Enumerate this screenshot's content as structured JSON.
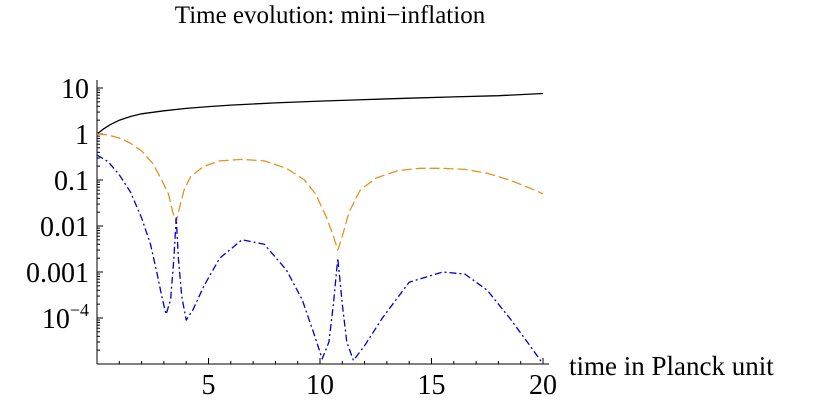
{
  "chart_data": {
    "type": "line",
    "title": "Time evolution: mini−inflation",
    "xlabel": "time in Planck unit",
    "ylabel": "",
    "xlim": [
      0,
      20
    ],
    "ylim": [
      1e-05,
      10
    ],
    "yscale": "log",
    "grid": false,
    "x_ticks": [
      {
        "value": 5,
        "label": "5"
      },
      {
        "value": 10,
        "label": "10"
      },
      {
        "value": 15,
        "label": "15"
      },
      {
        "value": 20,
        "label": "20"
      }
    ],
    "y_ticks": [
      {
        "value": 10,
        "label": "10"
      },
      {
        "value": 1,
        "label": "1"
      },
      {
        "value": 0.1,
        "label": "0.1"
      },
      {
        "value": 0.01,
        "label": "0.01"
      },
      {
        "value": 0.001,
        "label": "0.001"
      },
      {
        "value": 0.0001,
        "label_base": "10",
        "label_exp": "−4"
      }
    ],
    "series": [
      {
        "color": "#000000",
        "dash": "solid",
        "points": [
          [
            0,
            1.0
          ],
          [
            0.3,
            1.3
          ],
          [
            0.6,
            1.6
          ],
          [
            1,
            2.0
          ],
          [
            1.5,
            2.4
          ],
          [
            2,
            2.75
          ],
          [
            3,
            3.2
          ],
          [
            4,
            3.6
          ],
          [
            5,
            3.95
          ],
          [
            6,
            4.25
          ],
          [
            7,
            4.5
          ],
          [
            8,
            4.75
          ],
          [
            10,
            5.2
          ],
          [
            12,
            5.6
          ],
          [
            14,
            6.0
          ],
          [
            16,
            6.4
          ],
          [
            18,
            6.8
          ],
          [
            20,
            7.6
          ]
        ]
      },
      {
        "color": "#E8901F",
        "dash": "long",
        "points": [
          [
            0,
            1.0
          ],
          [
            0.5,
            0.95
          ],
          [
            1,
            0.82
          ],
          [
            1.5,
            0.63
          ],
          [
            2,
            0.43
          ],
          [
            2.5,
            0.23
          ],
          [
            2.9,
            0.1
          ],
          [
            3.2,
            0.05
          ],
          [
            3.4,
            0.02
          ],
          [
            3.55,
            0.012
          ],
          [
            3.7,
            0.025
          ],
          [
            3.9,
            0.06
          ],
          [
            4.2,
            0.12
          ],
          [
            4.8,
            0.2
          ],
          [
            5.5,
            0.26
          ],
          [
            6.5,
            0.28
          ],
          [
            7.5,
            0.26
          ],
          [
            8.5,
            0.18
          ],
          [
            9.3,
            0.1
          ],
          [
            9.8,
            0.05
          ],
          [
            10.3,
            0.015
          ],
          [
            10.6,
            0.006
          ],
          [
            10.8,
            0.003
          ],
          [
            11,
            0.006
          ],
          [
            11.3,
            0.02
          ],
          [
            11.8,
            0.06
          ],
          [
            12.5,
            0.11
          ],
          [
            13.5,
            0.16
          ],
          [
            14.5,
            0.18
          ],
          [
            15.5,
            0.18
          ],
          [
            16.5,
            0.17
          ],
          [
            17.5,
            0.14
          ],
          [
            18.5,
            0.1
          ],
          [
            19.3,
            0.07
          ],
          [
            20,
            0.05
          ]
        ]
      },
      {
        "color": "#0000CC",
        "dash": "dashdot",
        "points": [
          [
            0,
            0.35
          ],
          [
            0.5,
            0.25
          ],
          [
            1,
            0.13
          ],
          [
            1.5,
            0.055
          ],
          [
            2,
            0.015
          ],
          [
            2.4,
            0.004
          ],
          [
            2.7,
            0.0009
          ],
          [
            2.9,
            0.0003
          ],
          [
            3.1,
            0.00012
          ],
          [
            3.3,
            0.00025
          ],
          [
            3.45,
            0.002
          ],
          [
            3.55,
            0.015
          ],
          [
            3.65,
            0.002
          ],
          [
            3.8,
            0.0003
          ],
          [
            4,
            9e-05
          ],
          [
            4.3,
            0.00015
          ],
          [
            4.8,
            0.0005
          ],
          [
            5.5,
            0.002
          ],
          [
            6.5,
            0.005
          ],
          [
            7.5,
            0.004
          ],
          [
            8.5,
            0.0011
          ],
          [
            9.2,
            0.00025
          ],
          [
            9.7,
            5e-05
          ],
          [
            10.1,
            1.3e-05
          ],
          [
            10.4,
            3e-05
          ],
          [
            10.6,
            0.0002
          ],
          [
            10.8,
            0.002
          ],
          [
            11,
            0.0002
          ],
          [
            11.2,
            3e-05
          ],
          [
            11.5,
            1.2e-05
          ],
          [
            12,
            2.5e-05
          ],
          [
            12.8,
            0.0001
          ],
          [
            14,
            0.0006
          ],
          [
            15.5,
            0.001
          ],
          [
            16.5,
            0.0009
          ],
          [
            17.5,
            0.0004
          ],
          [
            18.5,
            0.0001
          ],
          [
            19.3,
            3e-05
          ],
          [
            20,
            1e-05
          ]
        ]
      }
    ]
  }
}
